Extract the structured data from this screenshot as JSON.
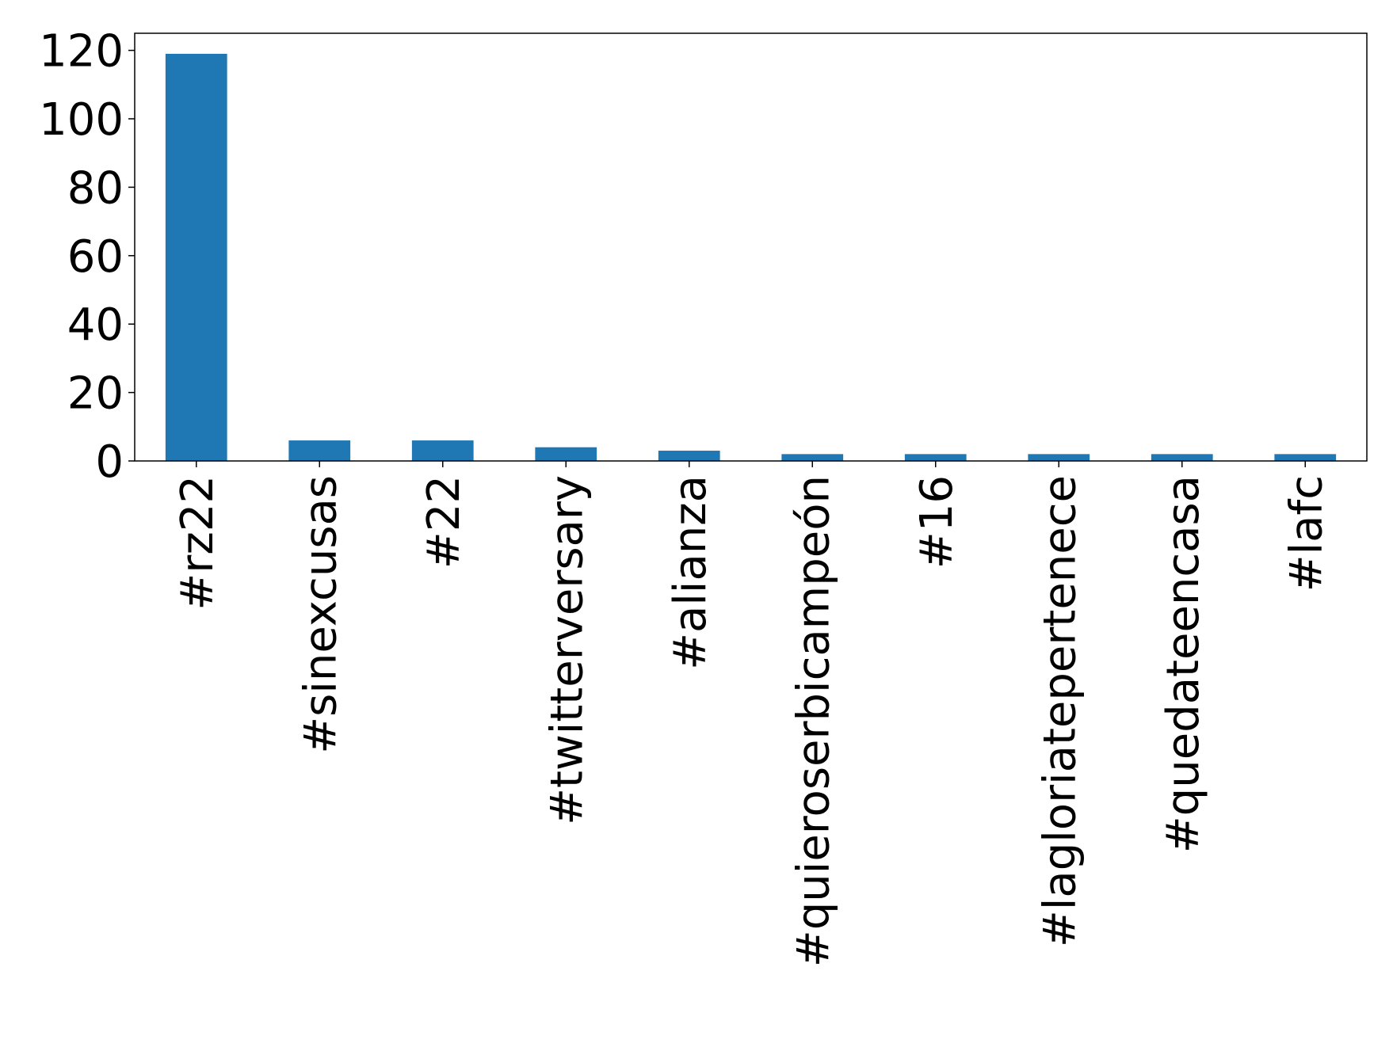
{
  "chart_data": {
    "type": "bar",
    "title": "",
    "xlabel": "",
    "ylabel": "",
    "categories": [
      "#rz22",
      "#sinexcusas",
      "#22",
      "#twitterversary",
      "#alianza",
      "#quieroserbicampeón",
      "#16",
      "#lagloriatepertenece",
      "#quedateencasa",
      "#lafc"
    ],
    "values": [
      119,
      6,
      6,
      4,
      3,
      2,
      2,
      2,
      2,
      2
    ],
    "ylim": [
      0,
      125
    ],
    "yticks": [
      0,
      20,
      40,
      60,
      80,
      100,
      120
    ],
    "grid": false,
    "legend": "none",
    "bar_color": "#1f77b4"
  }
}
